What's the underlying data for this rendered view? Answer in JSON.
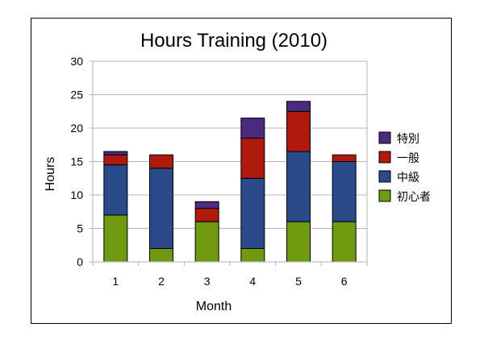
{
  "chart_data": {
    "type": "bar",
    "stacked": true,
    "title": "Hours Training (2010)",
    "xlabel": "Month",
    "ylabel": "Hours",
    "ylim": [
      0,
      30
    ],
    "yticks": [
      0,
      5,
      10,
      15,
      20,
      25,
      30
    ],
    "categories": [
      "1",
      "2",
      "3",
      "4",
      "5",
      "6"
    ],
    "grid": true,
    "legend_position": "right",
    "series": [
      {
        "name": "初心者",
        "color": "#6f9a10",
        "values": [
          7,
          2,
          6,
          2,
          6,
          6
        ]
      },
      {
        "name": "中級",
        "color": "#2a4a8a",
        "values": [
          7.5,
          12,
          0,
          10.5,
          10.5,
          9
        ]
      },
      {
        "name": "一般",
        "color": "#b01a0e",
        "values": [
          1.5,
          2,
          2,
          6,
          6,
          1
        ]
      },
      {
        "name": "特別",
        "color": "#4b2a80",
        "values": [
          0.5,
          0,
          1,
          3,
          1.5,
          0
        ]
      }
    ],
    "legend_order": [
      "特別",
      "一般",
      "中級",
      "初心者"
    ]
  }
}
